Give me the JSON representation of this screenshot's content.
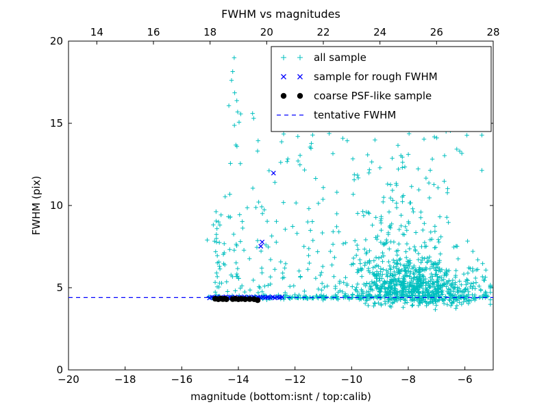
{
  "figure": {
    "background": "#ffffff"
  },
  "chart_data": {
    "type": "scatter",
    "title": "FWHM vs magnitudes",
    "xlabel": "magnitude (bottom:isnt / top:calib)",
    "ylabel": "FWHM (pix)",
    "xlim": [
      -20,
      -5
    ],
    "ylim": [
      0,
      20
    ],
    "x_ticks_bottom": [
      -20,
      -18,
      -16,
      -14,
      -12,
      -10,
      -8,
      -6
    ],
    "x_ticks_top": {
      "values": [
        14,
        16,
        18,
        20,
        22,
        24,
        26,
        28
      ],
      "offset_from_bottom_axis": 33
    },
    "y_ticks": [
      0,
      5,
      10,
      15,
      20
    ],
    "grid": false,
    "tentative_fwhm": 4.4,
    "legend": {
      "position": "upper right",
      "entries": [
        {
          "label": "all sample",
          "marker": "plus",
          "color": "#00bfbf"
        },
        {
          "label": "sample for rough FWHM",
          "marker": "x",
          "color": "#0000ff"
        },
        {
          "label": "coarse PSF-like sample",
          "marker": "dot",
          "color": "#000000"
        },
        {
          "label": "tentative FWHM",
          "marker": "dashed-line",
          "color": "#0000ff"
        }
      ]
    },
    "series": [
      {
        "name": "all sample",
        "marker": "plus",
        "color": "#00bfbf",
        "generated": true,
        "seed": 42,
        "clusters": [
          {
            "n": 260,
            "x": {
              "dist": "uniform",
              "min": -13.3,
              "max": -5.15
            },
            "y": {
              "dist": "normal",
              "mean": 4.42,
              "sd": 0.07,
              "clampMin": 4.2,
              "clampMax": 4.65
            }
          },
          {
            "n": 25,
            "x": {
              "dist": "uniform",
              "min": -15.05,
              "max": -13.3
            },
            "y": {
              "dist": "normal",
              "mean": 4.42,
              "sd": 0.06
            }
          },
          {
            "n": 620,
            "x": {
              "dist": "normal",
              "mean": -7.8,
              "sd": 1.15,
              "clampMin": -11.2,
              "clampMax": -5.1
            },
            "y": {
              "dist": "halfnormal",
              "base": 4.5,
              "sd": 1.0,
              "limit": 5.0
            }
          },
          {
            "n": 90,
            "x": {
              "dist": "normal",
              "mean": -7.5,
              "sd": 1.1,
              "clampMin": -10.5,
              "clampMax": -5.1
            },
            "y": {
              "dist": "halfnormal",
              "base": 4.3,
              "sd": 0.3,
              "sign": -1,
              "limit": 0.9
            }
          },
          {
            "n": 170,
            "x": {
              "dist": "normal",
              "mean": -8.4,
              "sd": 1.1,
              "clampMin": -11.0,
              "clampMax": -5.6
            },
            "y": {
              "dist": "halfnormal",
              "base": 6.0,
              "sd": 3.0,
              "limit": 9.3
            }
          },
          {
            "n": 45,
            "x": {
              "dist": "normal",
              "mean": -7.8,
              "sd": 1.4,
              "clampMin": -11.0,
              "clampMax": -5.4
            },
            "y": {
              "dist": "uniform",
              "min": 11.0,
              "max": 15.2
            }
          },
          {
            "n": 110,
            "x": {
              "dist": "uniform",
              "min": -14.7,
              "max": -10.5
            },
            "y": {
              "dist": "halfnormal",
              "base": 4.4,
              "sd": 3.5,
              "limit": 10.4
            }
          },
          {
            "n": 26,
            "x": {
              "dist": "normal",
              "mean": -14.1,
              "sd": 0.12
            },
            "y": {
              "dist": "uniform",
              "min": 4.5,
              "max": 19.3
            }
          },
          {
            "n": 22,
            "x": {
              "dist": "normal",
              "mean": -14.78,
              "sd": 0.06
            },
            "y": {
              "dist": "uniform",
              "min": 4.3,
              "max": 10.2
            }
          },
          {
            "n": 24,
            "x": {
              "dist": "uniform",
              "min": -13.6,
              "max": -11.2
            },
            "y": {
              "dist": "uniform",
              "min": 9.0,
              "max": 15.8
            }
          }
        ],
        "extra_points": [
          [
            -15.1,
            7.9
          ],
          [
            -12.4,
            14.35
          ],
          [
            -11.9,
            14.2
          ],
          [
            -13.5,
            15.6
          ]
        ]
      },
      {
        "name": "sample for rough FWHM",
        "marker": "x",
        "color": "#0000ff",
        "points": [
          [
            -15.02,
            4.38
          ],
          [
            -14.93,
            4.43
          ],
          [
            -14.86,
            4.4
          ],
          [
            -14.76,
            4.44
          ],
          [
            -14.68,
            4.38
          ],
          [
            -14.6,
            4.42
          ],
          [
            -14.52,
            4.4
          ],
          [
            -14.44,
            4.45
          ],
          [
            -14.37,
            4.39
          ],
          [
            -14.29,
            4.42
          ],
          [
            -14.21,
            4.4
          ],
          [
            -14.12,
            4.44
          ],
          [
            -14.04,
            4.38
          ],
          [
            -13.96,
            4.42
          ],
          [
            -13.88,
            4.4
          ],
          [
            -13.79,
            4.44
          ],
          [
            -13.71,
            4.39
          ],
          [
            -13.62,
            4.42
          ],
          [
            -13.54,
            4.4
          ],
          [
            -13.46,
            4.44
          ],
          [
            -13.38,
            4.38
          ],
          [
            -13.3,
            4.42
          ],
          [
            -13.22,
            4.4
          ],
          [
            -13.13,
            4.43
          ],
          [
            -13.05,
            4.39
          ],
          [
            -12.96,
            4.42
          ],
          [
            -12.88,
            4.4
          ],
          [
            -12.79,
            4.44
          ],
          [
            -12.71,
            4.38
          ],
          [
            -12.62,
            4.42
          ],
          [
            -12.54,
            4.4
          ],
          [
            -12.46,
            4.43
          ],
          [
            -12.76,
            11.97
          ],
          [
            -13.16,
            7.78
          ],
          [
            -13.21,
            7.52
          ]
        ]
      },
      {
        "name": "coarse PSF-like sample",
        "marker": "dot",
        "color": "#000000",
        "points": [
          [
            -14.82,
            4.33
          ],
          [
            -14.71,
            4.3
          ],
          [
            -14.63,
            4.34
          ],
          [
            -14.55,
            4.31
          ],
          [
            -14.49,
            4.33
          ],
          [
            -14.42,
            4.3
          ],
          [
            -14.2,
            4.31
          ],
          [
            -14.1,
            4.33
          ],
          [
            -14.0,
            4.3
          ],
          [
            -13.89,
            4.32
          ],
          [
            -13.76,
            4.3
          ],
          [
            -13.6,
            4.31
          ],
          [
            -13.44,
            4.3
          ],
          [
            -13.32,
            4.24
          ]
        ]
      },
      {
        "name": "tentative FWHM",
        "type": "hline",
        "y": 4.4,
        "color": "#0000ff",
        "style": "dashed"
      }
    ]
  }
}
